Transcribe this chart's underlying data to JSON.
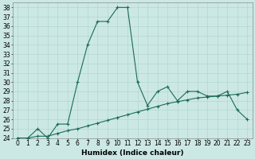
{
  "title": "",
  "xlabel": "Humidex (Indice chaleur)",
  "bg_color": "#cce8e4",
  "grid_color": "#aad4cc",
  "line_color": "#1a6b5a",
  "ylim": [
    24,
    38.5
  ],
  "xlim": [
    -0.5,
    23.5
  ],
  "yticks": [
    24,
    25,
    26,
    27,
    28,
    29,
    30,
    31,
    32,
    33,
    34,
    35,
    36,
    37,
    38
  ],
  "xticks": [
    0,
    1,
    2,
    3,
    4,
    5,
    6,
    7,
    8,
    9,
    10,
    11,
    12,
    13,
    14,
    15,
    16,
    17,
    18,
    19,
    20,
    21,
    22,
    23
  ],
  "line1_x": [
    0,
    1,
    2,
    3,
    4,
    5,
    6,
    7,
    8,
    9,
    10,
    11,
    12,
    13,
    14,
    15,
    16,
    17,
    18,
    19,
    20,
    21,
    22,
    23
  ],
  "line1_y": [
    24,
    24,
    25,
    24,
    25.5,
    25.5,
    30,
    34,
    36.5,
    36.5,
    38,
    38,
    30,
    27.5,
    29,
    29.5,
    28,
    29,
    29,
    28.5,
    28.5,
    29,
    27,
    26
  ],
  "line2_x": [
    0,
    1,
    2,
    3,
    4,
    5,
    6,
    7,
    8,
    9,
    10,
    11,
    12,
    13,
    14,
    15,
    16,
    17,
    18,
    19,
    20,
    21,
    22,
    23
  ],
  "line2_y": [
    24,
    24,
    24.2,
    24.2,
    24.5,
    24.8,
    25,
    25.3,
    25.6,
    25.9,
    26.2,
    26.5,
    26.8,
    27.1,
    27.4,
    27.7,
    27.9,
    28.1,
    28.3,
    28.4,
    28.5,
    28.6,
    28.7,
    28.9
  ],
  "tick_fontsize": 5.5,
  "xlabel_fontsize": 6.5,
  "line_width": 0.8,
  "marker_size": 3
}
